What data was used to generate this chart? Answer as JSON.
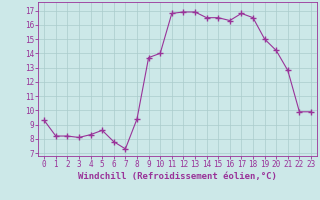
{
  "x": [
    0,
    1,
    2,
    3,
    4,
    5,
    6,
    7,
    8,
    9,
    10,
    11,
    12,
    13,
    14,
    15,
    16,
    17,
    18,
    19,
    20,
    21,
    22,
    23
  ],
  "y": [
    9.3,
    8.2,
    8.2,
    8.1,
    8.3,
    8.6,
    7.8,
    7.3,
    9.4,
    13.7,
    14.0,
    16.8,
    16.9,
    16.9,
    16.5,
    16.5,
    16.3,
    16.8,
    16.5,
    15.0,
    14.2,
    12.8,
    9.9,
    9.9
  ],
  "line_color": "#993399",
  "marker": "+",
  "marker_size": 4,
  "marker_lw": 1.0,
  "bg_color": "#cce8e8",
  "grid_color": "#aacccc",
  "xlabel": "Windchill (Refroidissement éolien,°C)",
  "xlabel_fontsize": 6.5,
  "ylabel_ticks": [
    7,
    8,
    9,
    10,
    11,
    12,
    13,
    14,
    15,
    16,
    17
  ],
  "xtick_labels": [
    "0",
    "1",
    "2",
    "3",
    "4",
    "5",
    "6",
    "7",
    "8",
    "9",
    "10",
    "11",
    "12",
    "13",
    "14",
    "15",
    "16",
    "17",
    "18",
    "19",
    "20",
    "21",
    "22",
    "23"
  ],
  "xticks": [
    0,
    1,
    2,
    3,
    4,
    5,
    6,
    7,
    8,
    9,
    10,
    11,
    12,
    13,
    14,
    15,
    16,
    17,
    18,
    19,
    20,
    21,
    22,
    23
  ],
  "ylim": [
    6.8,
    17.6
  ],
  "xlim": [
    -0.5,
    23.5
  ],
  "tick_fontsize": 5.5,
  "tick_color": "#993399",
  "spine_color": "#993399",
  "linewidth": 0.8
}
